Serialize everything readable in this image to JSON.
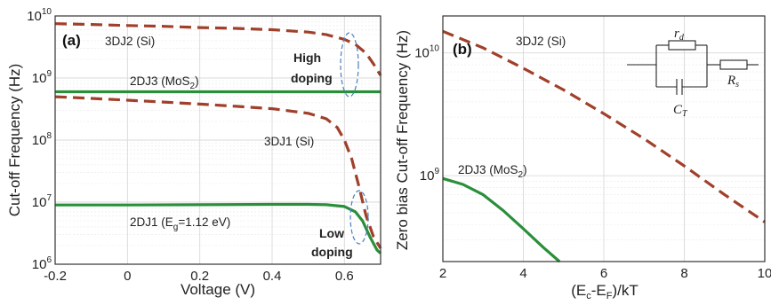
{
  "colors": {
    "si": "#a0402a",
    "mos2": "#2a8f3a",
    "grid": "#d9d9d9",
    "frame": "#333333",
    "ellipse": "#4a7fc0"
  },
  "chart_data": [
    {
      "panel": "(a)",
      "type": "line",
      "xlabel": "Voltage (V)",
      "ylabel": "Cut-off Frequency (Hz)",
      "xlim": [
        -0.2,
        0.7
      ],
      "ylim": [
        1000000,
        10000000000
      ],
      "yscale": "log",
      "grid": true,
      "xticks": [
        "-0.2",
        "0",
        "0.2",
        "0.4",
        "0.6"
      ],
      "yticks": [
        {
          "value": 1000000,
          "base": "10",
          "exp": "6"
        },
        {
          "value": 10000000,
          "base": "10",
          "exp": "7"
        },
        {
          "value": 100000000,
          "base": "10",
          "exp": "8"
        },
        {
          "value": 1000000000,
          "base": "10",
          "exp": "9"
        },
        {
          "value": 10000000000,
          "base": "10",
          "exp": "10"
        }
      ],
      "series": [
        {
          "label": "3DJ2 (Si)",
          "style": "dashed",
          "color": "si",
          "x": [
            -0.2,
            -0.1,
            0,
            0.1,
            0.2,
            0.3,
            0.4,
            0.5,
            0.55,
            0.6,
            0.63,
            0.66,
            0.68,
            0.7
          ],
          "y": [
            7500000000,
            7300000000,
            7000000000,
            6800000000,
            6500000000,
            6300000000,
            6000000000,
            5500000000,
            5000000000,
            4200000000,
            3500000000,
            2500000000,
            1700000000,
            1100000000
          ]
        },
        {
          "label": "2DJ3 (MoS2)",
          "style": "solid",
          "color": "mos2",
          "x": [
            -0.2,
            0.7
          ],
          "y": [
            600000000,
            600000000
          ]
        },
        {
          "label": "3DJ1 (Si)",
          "style": "dashed",
          "color": "si",
          "x": [
            -0.2,
            -0.1,
            0,
            0.1,
            0.2,
            0.3,
            0.4,
            0.5,
            0.55,
            0.58,
            0.6,
            0.62,
            0.64,
            0.66,
            0.68,
            0.7
          ],
          "y": [
            500000000,
            470000000,
            440000000,
            410000000,
            380000000,
            350000000,
            320000000,
            270000000,
            220000000,
            160000000,
            100000000,
            50000000,
            18000000,
            6000000,
            2800000,
            1800000
          ]
        },
        {
          "label": "2DJ1 (Eg=1.12 eV)",
          "style": "solid",
          "color": "mos2",
          "x": [
            -0.2,
            0,
            0.2,
            0.4,
            0.5,
            0.55,
            0.6,
            0.63,
            0.65,
            0.67,
            0.69,
            0.7
          ],
          "y": [
            9000000,
            9000000,
            9100000,
            9200000,
            9200000,
            9100000,
            8500000,
            7000000,
            5000000,
            2800000,
            1700000,
            1500000
          ]
        }
      ],
      "annotations": {
        "panel_label": "(a)",
        "s3dj2": "3DJ2 (Si)",
        "s2dj3_main": "2DJ3 (MoS",
        "s2dj3_sub": "2",
        "s2dj3_close": ")",
        "s3dj1": "3DJ1 (Si)",
        "s2dj1_main": "2DJ1 (E",
        "s2dj1_sub": "g",
        "s2dj1_tail": "=1.12 eV)",
        "high_line1": "High",
        "high_line2": "doping",
        "low_line1": "Low",
        "low_line2": "doping"
      }
    },
    {
      "panel": "(b)",
      "type": "line",
      "xlabel_main": "(E",
      "xlabel_sub1": "c",
      "xlabel_mid": "-E",
      "xlabel_sub2": "F",
      "xlabel_tail": ")/kT",
      "ylabel": "Zero bias Cut-off Frequency (Hz)",
      "xlim": [
        2,
        10
      ],
      "ylim": [
        200000000,
        20000000000
      ],
      "yscale": "log",
      "grid": true,
      "xticks": [
        "2",
        "4",
        "6",
        "8",
        "10"
      ],
      "yticks": [
        {
          "value": 1000000000,
          "base": "10",
          "exp": "9"
        },
        {
          "value": 10000000000,
          "base": "10",
          "exp": "10"
        }
      ],
      "series": [
        {
          "label": "3DJ2 (Si)",
          "style": "dashed",
          "color": "si",
          "x": [
            2,
            3,
            4,
            5,
            6,
            7,
            8,
            9,
            10
          ],
          "y": [
            15000000000,
            11000000000,
            7500000000,
            5000000000,
            3200000000,
            2000000000,
            1200000000,
            700000000,
            420000000
          ]
        },
        {
          "label": "2DJ3 (MoS2)",
          "style": "solid",
          "color": "mos2",
          "x": [
            2,
            2.5,
            3,
            3.5,
            4,
            4.5,
            4.9
          ],
          "y": [
            950000000,
            850000000,
            700000000,
            520000000,
            370000000,
            260000000,
            200000000
          ]
        }
      ],
      "annotations": {
        "panel_label": "(b)",
        "s3dj2": "3DJ2 (Si)",
        "s2dj3_main": "2DJ3 (MoS",
        "s2dj3_sub": "2",
        "s2dj3_close": ")"
      },
      "circuit": {
        "rd_main": "r",
        "rd_sub": "d",
        "rs_main": "R",
        "rs_sub": "s",
        "ct_main": "C",
        "ct_sub": "T"
      }
    }
  ]
}
